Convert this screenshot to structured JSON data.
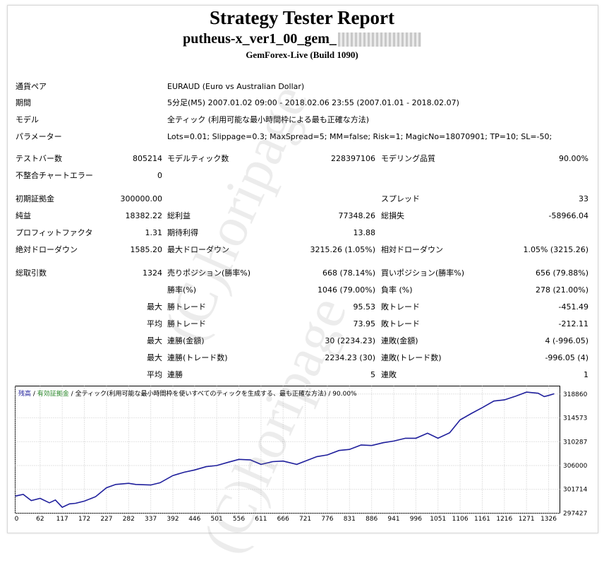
{
  "header": {
    "title": "Strategy Tester Report",
    "ea_name": "putheus-x_ver1_00_gem_",
    "server": "GemForex-Live (Build 1090)"
  },
  "info": [
    {
      "label": "通貨ペア",
      "value": "EURAUD (Euro vs Australian Dollar)"
    },
    {
      "label": "期間",
      "value": "5分足(M5) 2007.01.02 09:00 - 2018.02.06 23:55 (2007.01.01 - 2018.02.07)"
    },
    {
      "label": "モデル",
      "value": "全ティック (利用可能な最小時間枠による最も正確な方法)"
    },
    {
      "label": "パラメーター",
      "value": "Lots=0.01; Slippage=0.3; MaxSpread=5; MM=false; Risk=1; MagicNo=18070901; TP=10; SL=-50;"
    }
  ],
  "stats": {
    "bars_label": "テストバー数",
    "bars": "805214",
    "ticks_label": "モデルティック数",
    "ticks": "228397106",
    "quality_label": "モデリング品質",
    "quality": "90.00%",
    "mismatch_label": "不整合チャートエラー",
    "mismatch": "0",
    "deposit_label": "初期証拠金",
    "deposit": "300000.00",
    "spread_label": "スプレッド",
    "spread": "33",
    "netprofit_label": "純益",
    "netprofit": "18382.22",
    "grossprofit_label": "総利益",
    "grossprofit": "77348.26",
    "grossloss_label": "総損失",
    "grossloss": "-58966.04",
    "pf_label": "プロフィットファクタ",
    "pf": "1.31",
    "expected_label": "期待利得",
    "expected": "13.88",
    "absdd_label": "絶対ドローダウン",
    "absdd": "1585.20",
    "maxdd_label": "最大ドローダウン",
    "maxdd": "3215.26 (1.05%)",
    "reldd_label": "相対ドローダウン",
    "reldd": "1.05% (3215.26)",
    "trades_label": "総取引数",
    "trades": "1324",
    "short_label": "売りポジション(勝率%)",
    "short": "668 (78.14%)",
    "long_label": "買いポジション(勝率%)",
    "long": "656 (79.88%)",
    "winpct_label": "勝率(%)",
    "winpct": "1046 (79.00%)",
    "losspct_label": "負率 (%)",
    "losspct": "278 (21.00%)",
    "max_label": "最大",
    "avg_label": "平均",
    "largest_win_label": "勝トレード",
    "largest_win": "95.53",
    "largest_loss_label": "敗トレード",
    "largest_loss": "-451.49",
    "avg_win_label": "勝トレード",
    "avg_win": "73.95",
    "avg_loss_label": "敗トレード",
    "avg_loss": "-212.11",
    "consec_win_amt_label": "連勝(金額)",
    "consec_win_amt": "30 (2234.23)",
    "consec_loss_amt_label": "連敗(金額)",
    "consec_loss_amt": "4 (-996.05)",
    "consec_win_tr_label": "連勝(トレード数)",
    "consec_win_tr": "2234.23 (30)",
    "consec_loss_tr_label": "連敗(トレード数)",
    "consec_loss_tr": "-996.05 (4)",
    "avg_consec_win_label": "連勝",
    "avg_consec_win": "5",
    "avg_consec_loss_label": "連敗",
    "avg_consec_loss": "1"
  },
  "chart_data": {
    "type": "line",
    "legend": {
      "balance": "残高",
      "sep1": " / ",
      "equity": "有効証拠金",
      "sep2": " / ",
      "model": "全ティック(利用可能な最小時間枠を使いすべてのティックを生成する、最も正確な方法)",
      "sep3": " / ",
      "quality": "90.00%"
    },
    "colors": {
      "balance": "#1f1f9c",
      "equity": "#2e8b2e",
      "grid": "#c8c8c8"
    },
    "x_ticks": [
      "0",
      "62",
      "117",
      "172",
      "227",
      "282",
      "337",
      "392",
      "446",
      "501",
      "556",
      "611",
      "666",
      "721",
      "776",
      "831",
      "886",
      "941",
      "996",
      "1051",
      "1106",
      "1161",
      "1216",
      "1271",
      "1326"
    ],
    "y_ticks": [
      "318860",
      "314573",
      "310287",
      "306000",
      "301714",
      "297427"
    ],
    "xlim": [
      0,
      1354
    ],
    "ylim": [
      297427,
      320290
    ],
    "x": [
      0,
      20,
      40,
      62,
      85,
      100,
      117,
      135,
      150,
      172,
      200,
      227,
      250,
      282,
      300,
      337,
      360,
      392,
      420,
      446,
      475,
      501,
      530,
      556,
      585,
      611,
      640,
      666,
      700,
      721,
      750,
      776,
      805,
      831,
      860,
      886,
      915,
      941,
      970,
      996,
      1025,
      1051,
      1080,
      1106,
      1135,
      1161,
      1190,
      1216,
      1245,
      1271,
      1300,
      1315,
      1326,
      1340
    ],
    "y": [
      300500,
      300800,
      299700,
      300100,
      299300,
      299800,
      298500,
      299100,
      299200,
      299600,
      300400,
      302000,
      302600,
      302800,
      302600,
      302500,
      302900,
      304200,
      304800,
      305200,
      305800,
      306000,
      306600,
      307100,
      307000,
      306200,
      306700,
      306800,
      306200,
      306800,
      307600,
      307900,
      308700,
      308900,
      309700,
      309600,
      310100,
      310400,
      310900,
      310900,
      311800,
      310900,
      311900,
      314200,
      315400,
      316400,
      317600,
      317800,
      318500,
      319200,
      319000,
      318400,
      318600,
      318900
    ]
  }
}
